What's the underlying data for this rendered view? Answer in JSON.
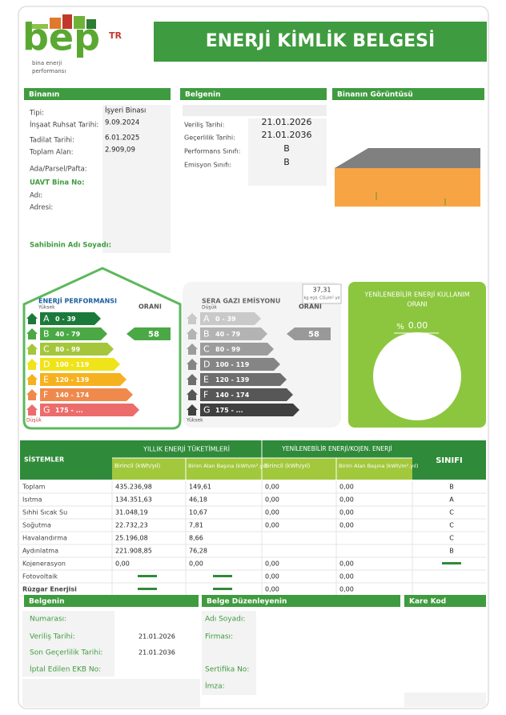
{
  "header": {
    "logo": "bep",
    "logo_tr": "TR",
    "logo_sub": [
      "bina enerji",
      "performansı"
    ],
    "title": "ENERJİ KİMLİK BELGESİ"
  },
  "building": {
    "heading": "Binanın",
    "fields": [
      {
        "label": "Tipi:",
        "value": "İşyeri Binası"
      },
      {
        "label": "İnşaat Ruhsat Tarihi:",
        "value": "9.09.2024"
      },
      {
        "label": "Tadilat Tarihi:",
        "value": "6.01.2025"
      },
      {
        "label": "Toplam Alan:",
        "value": "2.909,09"
      },
      {
        "label": "Ada/Parsel/Pafta:"
      },
      {
        "label": "UAVT Bina No:",
        "highlight": true
      },
      {
        "label": "Adı:"
      },
      {
        "label": "Adresi:"
      },
      {
        "label": "Sahibinin Adı Soyadı:",
        "highlight": true
      }
    ]
  },
  "certificate": {
    "heading": "Belgenin",
    "fields": [
      {
        "label": "Veriliş Tarihi:",
        "value": "21.01.2026"
      },
      {
        "label": "Geçerlilik Tarihi:",
        "value": "21.01.2036"
      },
      {
        "label": "Performans Sınıfı:",
        "value": "B"
      },
      {
        "label": "Emisyon Sınıfı:",
        "value": "B"
      }
    ]
  },
  "image": {
    "heading": "Binanın Görüntüsü"
  },
  "scale_classes": [
    {
      "letter": "A",
      "range": "0 - 39"
    },
    {
      "letter": "B",
      "range": "40 - 79"
    },
    {
      "letter": "C",
      "range": "80 - 99"
    },
    {
      "letter": "D",
      "range": "100 - 119"
    },
    {
      "letter": "E",
      "range": "120 - 139"
    },
    {
      "letter": "F",
      "range": "140 - 174"
    },
    {
      "letter": "G",
      "range": "175 - ..."
    }
  ],
  "energy": {
    "title": "ENERJİ PERFORMANSI",
    "top_label": "Yüksek",
    "bottom_label": "Düşük",
    "rate_label": "ORANI",
    "value": "58",
    "class_index": 1,
    "colors": [
      "#1b7a3a",
      "#4aa845",
      "#a5c63b",
      "#efe31a",
      "#f6b21e",
      "#ef8a4c",
      "#ec6c6c"
    ]
  },
  "emission": {
    "title": "SERA GAZI EMİSYONU",
    "top_label": "Düşük",
    "bottom_label": "Yüksek",
    "rate_label": "ORANI",
    "value": "58",
    "class_index": 1,
    "amount": "37,31",
    "unit": "kg eşd. CO₂/m².yıl",
    "colors": [
      "#c9c9c9",
      "#b3b3b3",
      "#9c9c9c",
      "#858585",
      "#6e6e6e",
      "#575757",
      "#404040"
    ]
  },
  "renewable": {
    "title": [
      "YENİLENEBİLİR ENERJİ KULLANIM",
      "ORANI"
    ],
    "symbol": "%",
    "value": "0.00"
  },
  "systems": {
    "headers": {
      "systems": "SİSTEMLER",
      "consumption": "YILLIK ENERJİ TÜKETİMLERİ",
      "renewable": "YENİLENEBİLİR ENERJİ/KOJEN. ENERJİ",
      "class": "SINIFI",
      "sub": [
        "Birincil (kWh/yıl)",
        "Birim Alan Başına (kWh/m².yıl)",
        "Birincil (kWh/yıl)",
        "Birim Alan Başına (kWh/m².yıl)"
      ]
    },
    "rows": [
      {
        "name": "Toplam",
        "cells": [
          "435.236,98",
          "149,61",
          "0,00",
          "0,00",
          "B"
        ]
      },
      {
        "name": "Isıtma",
        "cells": [
          "134.351,63",
          "46,18",
          "0,00",
          "0,00",
          "A"
        ]
      },
      {
        "name": "Sıhhi Sıcak Su",
        "cells": [
          "31.048,19",
          "10,67",
          "0,00",
          "0,00",
          "C"
        ]
      },
      {
        "name": "Soğutma",
        "cells": [
          "22.732,23",
          "7,81",
          "0,00",
          "0,00",
          "C"
        ]
      },
      {
        "name": "Havalandırma",
        "cells": [
          "25.196,08",
          "8,66",
          null,
          null,
          "C"
        ]
      },
      {
        "name": "Aydınlatma",
        "cells": [
          "221.908,85",
          "76,28",
          null,
          null,
          "B"
        ]
      },
      {
        "name": "Kojenerasyon",
        "cells": [
          "0,00",
          "0,00",
          "0,00",
          "0,00",
          null
        ],
        "dashes": [
          4
        ]
      },
      {
        "name": "Fotovoltaik",
        "cells": [
          null,
          null,
          "0,00",
          "0,00",
          null
        ],
        "dashes": [
          0,
          1
        ]
      },
      {
        "name": "Rüzgar Enerjisi",
        "cells": [
          null,
          null,
          "0,00",
          "0,00",
          null
        ],
        "dashes": [
          0,
          1
        ]
      }
    ]
  },
  "footer": {
    "certificate": {
      "heading": "Belgenin",
      "fields": [
        {
          "label": "Numarası:"
        },
        {
          "label": "Veriliş Tarihi:",
          "value": "21.01.2026"
        },
        {
          "label": "Son Geçerlilik Tarihi:",
          "value": "21.01.2036"
        },
        {
          "label": "İptal Edilen EKB No:"
        }
      ]
    },
    "issuer": {
      "heading": "Belge Düzenleyenin",
      "fields": [
        {
          "label": "Adı Soyadı:"
        },
        {
          "label": "Firması:"
        },
        {
          "label": "Sertifika No:"
        },
        {
          "label": "İmza:"
        }
      ]
    },
    "qr": {
      "heading": "Kare Kod"
    }
  }
}
